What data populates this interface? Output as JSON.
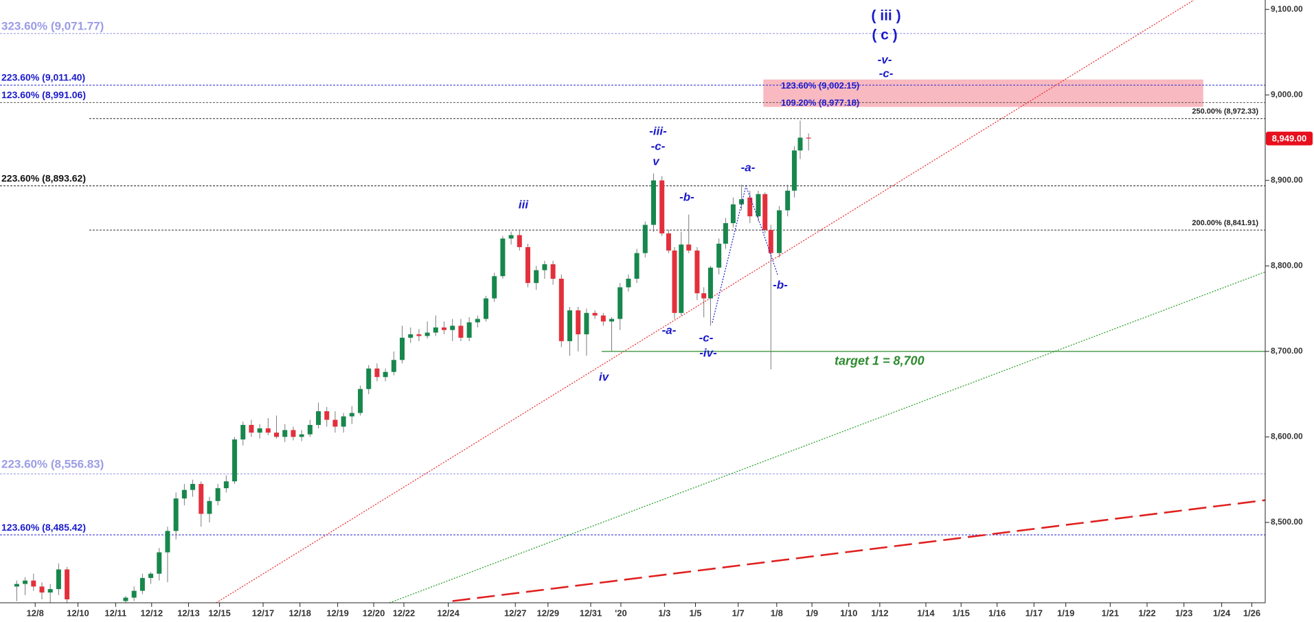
{
  "chart_data": {
    "type": "candlestick",
    "up_color": "#17874c",
    "down_color": "#e3303c",
    "wick_color": "#7a7a7a",
    "grid": false,
    "xlim": [
      -1.5,
      149.5
    ],
    "ylim": [
      8406,
      9111
    ],
    "yticks": [
      {
        "value": 8500,
        "label": "8,500.00"
      },
      {
        "value": 8600,
        "label": "8,600.00"
      },
      {
        "value": 8700,
        "label": "8,700.00"
      },
      {
        "value": 8800,
        "label": "8,800.00"
      },
      {
        "value": 8900,
        "label": "8,900.00"
      },
      {
        "value": 9000,
        "label": "9,000.00"
      },
      {
        "value": 9100,
        "label": "9,100.00"
      }
    ],
    "xticks": [
      {
        "value": 2.7,
        "label": "12/8"
      },
      {
        "value": 7.8,
        "label": "12/10"
      },
      {
        "value": 12.3,
        "label": "12/11"
      },
      {
        "value": 16.6,
        "label": "12/12"
      },
      {
        "value": 21,
        "label": "12/13"
      },
      {
        "value": 24.7,
        "label": "12/15"
      },
      {
        "value": 29.9,
        "label": "12/17"
      },
      {
        "value": 34.3,
        "label": "12/18"
      },
      {
        "value": 38.8,
        "label": "12/19"
      },
      {
        "value": 43.1,
        "label": "12/20"
      },
      {
        "value": 46.7,
        "label": "12/22"
      },
      {
        "value": 52,
        "label": "12/24"
      },
      {
        "value": 60,
        "label": "12/27"
      },
      {
        "value": 63.9,
        "label": "12/29"
      },
      {
        "value": 69,
        "label": "12/31"
      },
      {
        "value": 72.6,
        "label": "'20"
      },
      {
        "value": 77.8,
        "label": "1/3"
      },
      {
        "value": 81.5,
        "label": "1/5"
      },
      {
        "value": 86.6,
        "label": "1/7"
      },
      {
        "value": 91.2,
        "label": "1/8"
      },
      {
        "value": 95.4,
        "label": "1/9"
      },
      {
        "value": 99.8,
        "label": "1/10"
      },
      {
        "value": 103.5,
        "label": "1/12"
      },
      {
        "value": 109,
        "label": "1/14"
      },
      {
        "value": 113.2,
        "label": "1/15"
      },
      {
        "value": 117.5,
        "label": "1/16"
      },
      {
        "value": 121.9,
        "label": "1/17"
      },
      {
        "value": 125.7,
        "label": "1/19"
      },
      {
        "value": 131,
        "label": "1/21"
      },
      {
        "value": 135.4,
        "label": "1/22"
      },
      {
        "value": 139.8,
        "label": "1/23"
      },
      {
        "value": 144.3,
        "label": "1/24"
      },
      {
        "value": 147.9,
        "label": "1/26"
      }
    ],
    "candles": {
      "x": [
        0.5,
        1.5,
        2.5,
        3.5,
        4.5,
        5.5,
        6.5,
        13.5,
        14.5,
        15.5,
        16.5,
        17.5,
        18.5,
        19.5,
        20.5,
        21.5,
        22.5,
        23.5,
        24.5,
        25.5,
        26.5,
        27.5,
        28.5,
        29.5,
        30.5,
        31.5,
        32.5,
        33.5,
        34.5,
        35.5,
        36.5,
        37.5,
        38.5,
        39.5,
        40.5,
        41.5,
        42.5,
        43.5,
        44.5,
        45.5,
        46.5,
        47.5,
        48.5,
        49.5,
        50.5,
        51.5,
        52.5,
        53.5,
        54.5,
        55.5,
        56.5,
        57.5,
        58.5,
        59.5,
        60.5,
        61.5,
        62.5,
        63.5,
        64.5,
        65.5,
        66.5,
        67.5,
        68.5,
        69.5,
        70.5,
        71.5,
        72.5,
        73.5,
        74.5,
        75.5,
        76.5,
        77.5,
        78.3,
        79,
        79.8,
        80.7,
        81.7,
        82.5,
        83.3,
        84.3,
        85.1,
        86,
        87,
        88,
        89,
        89.8,
        90.5,
        91.5,
        92.5,
        93.3,
        94,
        95
      ],
      "open": [
        8425,
        8428,
        8432,
        8425,
        8418,
        8422,
        8445,
        8408,
        8412,
        8420,
        8435,
        8440,
        8465,
        8490,
        8528,
        8538,
        8545,
        8510,
        8525,
        8540,
        8548,
        8597,
        8614,
        8605,
        8610,
        8605,
        8600,
        8608,
        8600,
        8603,
        8614,
        8630,
        8620,
        8612,
        8624,
        8628,
        8656,
        8680,
        8670,
        8676,
        8690,
        8716,
        8720,
        8718,
        8722,
        8728,
        8725,
        8730,
        8716,
        8734,
        8738,
        8762,
        8788,
        8832,
        8836,
        8822,
        8780,
        8795,
        8802,
        8785,
        8712,
        8748,
        8720,
        8745,
        8742,
        8735,
        8738,
        8775,
        8785,
        8815,
        8848,
        8900,
        8838,
        8818,
        8745,
        8825,
        8818,
        8768,
        8762,
        8798,
        8826,
        8850,
        8872,
        8880,
        8858,
        8884,
        8842,
        8815,
        8865,
        8888,
        8935,
        8950
      ],
      "high": [
        8432,
        8436,
        8440,
        8430,
        8428,
        8452,
        8448,
        8414,
        8425,
        8440,
        8442,
        8470,
        8495,
        8535,
        8545,
        8550,
        8548,
        8530,
        8545,
        8555,
        8600,
        8618,
        8620,
        8615,
        8622,
        8625,
        8615,
        8612,
        8608,
        8620,
        8640,
        8635,
        8630,
        8628,
        8636,
        8660,
        8684,
        8686,
        8680,
        8700,
        8730,
        8728,
        8726,
        8735,
        8742,
        8735,
        8738,
        8738,
        8740,
        8742,
        8765,
        8792,
        8835,
        8840,
        8842,
        8826,
        8800,
        8806,
        8806,
        8790,
        8752,
        8752,
        8750,
        8748,
        8745,
        8740,
        8780,
        8790,
        8820,
        8852,
        8908,
        8905,
        8842,
        8822,
        8840,
        8860,
        8822,
        8775,
        8800,
        8832,
        8856,
        8880,
        8895,
        8888,
        8888,
        8886,
        8848,
        8870,
        8895,
        8940,
        8970,
        8955
      ],
      "low": [
        8408,
        8415,
        8420,
        8410,
        8406,
        8415,
        8406,
        8406,
        8408,
        8416,
        8428,
        8432,
        8430,
        8480,
        8520,
        8530,
        8495,
        8500,
        8520,
        8535,
        8545,
        8590,
        8600,
        8598,
        8602,
        8598,
        8594,
        8596,
        8595,
        8600,
        8610,
        8612,
        8605,
        8605,
        8615,
        8625,
        8650,
        8665,
        8665,
        8672,
        8686,
        8710,
        8712,
        8715,
        8718,
        8720,
        8712,
        8712,
        8712,
        8728,
        8735,
        8758,
        8785,
        8825,
        8818,
        8775,
        8772,
        8785,
        8778,
        8705,
        8695,
        8700,
        8695,
        8738,
        8730,
        8700,
        8725,
        8770,
        8780,
        8810,
        8840,
        8835,
        8815,
        8738,
        8742,
        8815,
        8760,
        8740,
        8730,
        8790,
        8820,
        8845,
        8865,
        8850,
        8852,
        8838,
        8679,
        8810,
        8858,
        8880,
        8925,
        8935
      ],
      "close": [
        8428,
        8432,
        8425,
        8418,
        8422,
        8445,
        8410,
        8412,
        8420,
        8435,
        8440,
        8465,
        8490,
        8528,
        8538,
        8545,
        8510,
        8525,
        8540,
        8548,
        8597,
        8614,
        8605,
        8610,
        8605,
        8600,
        8608,
        8600,
        8603,
        8614,
        8630,
        8620,
        8612,
        8624,
        8628,
        8656,
        8680,
        8670,
        8676,
        8690,
        8716,
        8720,
        8718,
        8722,
        8728,
        8725,
        8730,
        8716,
        8734,
        8738,
        8762,
        8788,
        8832,
        8836,
        8822,
        8780,
        8795,
        8802,
        8785,
        8712,
        8748,
        8720,
        8745,
        8742,
        8735,
        8738,
        8775,
        8785,
        8815,
        8848,
        8900,
        8838,
        8818,
        8745,
        8825,
        8818,
        8768,
        8762,
        8798,
        8826,
        8850,
        8872,
        8878,
        8858,
        8884,
        8842,
        8815,
        8865,
        8888,
        8935,
        8950,
        8949
      ]
    },
    "levels": [
      {
        "label": "323.60% (9,071.77)",
        "value": 9071.77,
        "color": "#9c9ce6",
        "line_color": "#9c9ce6"
      },
      {
        "label": "223.60% (9,011.40)",
        "value": 9011.4,
        "color": "#1a1acc",
        "line_color": "#3a3ad8"
      },
      {
        "label": "123.60% (8,991.06)",
        "value": 8991.06,
        "color": "#1a1acc",
        "line_color": "#555555"
      },
      {
        "label": "250.00% (8,972.33)",
        "value": 8972.33,
        "color": "#222222",
        "line_color": "#444444"
      },
      {
        "label": "223.60% (8,893.62)",
        "value": 8893.62,
        "color": "#111111",
        "line_color": "#333333"
      },
      {
        "label": "200.00% (8,841.91)",
        "value": 8841.91,
        "color": "#222222",
        "line_color": "#333333"
      },
      {
        "label": "223.60% (8,556.83)",
        "value": 8556.83,
        "color": "#9c9ce6",
        "line_color": "#9c9ce6"
      },
      {
        "label": "123.60% (8,485.42)",
        "value": 8485.42,
        "color": "#1a1acc",
        "line_color": "#3a3ad8"
      },
      {
        "label": "123.60% (9,002.15)",
        "value": 9002.15,
        "color": "#1a1acc",
        "line_color": "none"
      },
      {
        "label": "109.20% (8,977.18)",
        "value": 8977.18,
        "color": "#1a1acc",
        "line_color": "none"
      }
    ],
    "zone": {
      "x": [
        89.6,
        142.1
      ],
      "y": [
        8986,
        9018
      ],
      "color": "#f9b9c0"
    },
    "trendlines": [
      {
        "points": [
          [
            24.3,
            8406
          ],
          [
            141,
            9111
          ]
        ],
        "color": "#e83030",
        "style": "dotted"
      },
      {
        "points": [
          [
            45,
            8406
          ],
          [
            149.5,
            8793
          ]
        ],
        "color": "#2aa02a",
        "style": "dotted"
      },
      {
        "points": [
          [
            52.5,
            8408
          ],
          [
            149.5,
            8526
          ]
        ],
        "color": "#e02020",
        "style": "dashed"
      }
    ],
    "target": {
      "label": "target 1 = 8,700",
      "value": 8700,
      "color": "#2e8b2e"
    },
    "annotations": [
      "iii",
      "iv",
      "-iii-",
      "-c-",
      "v",
      "-a-",
      "-b-",
      "-c-",
      "-iv-",
      "-a-",
      "-b-",
      "( iii )",
      "( c )",
      "-v-",
      "-c-"
    ],
    "annotation_color": "#1a1acc",
    "last_price": {
      "value": 8949,
      "label": "8,949.00",
      "color": "#e8101e"
    }
  }
}
